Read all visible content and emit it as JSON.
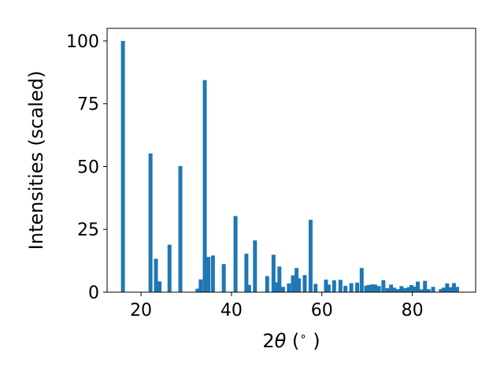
{
  "chart_data": {
    "type": "bar",
    "xlabel": "2θ (°)",
    "xlabel_parts": {
      "prefix": "2",
      "theta": "θ",
      "open": " (",
      "unit": "∘",
      "close": " )"
    },
    "ylabel": "Intensities (scaled)",
    "xlim": [
      12.5,
      94.0
    ],
    "ylim": [
      0,
      105
    ],
    "xticks": [
      20,
      40,
      60,
      80
    ],
    "yticks": [
      0,
      25,
      50,
      75,
      100
    ],
    "bar_color": "#1f77b4",
    "grid": false,
    "x": [
      16.0,
      22.1,
      23.3,
      24.1,
      26.3,
      28.7,
      32.5,
      33.2,
      34.1,
      34.9,
      35.9,
      38.3,
      40.9,
      43.3,
      43.9,
      45.2,
      47.9,
      49.3,
      49.9,
      50.6,
      51.4,
      52.7,
      53.6,
      54.4,
      54.9,
      56.2,
      57.5,
      58.6,
      60.9,
      61.5,
      62.7,
      64.1,
      65.2,
      66.5,
      67.8,
      68.8,
      69.8,
      70.4,
      71.2,
      71.8,
      72.6,
      73.6,
      74.5,
      75.3,
      76.0,
      76.8,
      77.6,
      78.4,
      79.2,
      79.8,
      80.4,
      81.2,
      82.0,
      82.8,
      83.6,
      84.6,
      86.3,
      86.9,
      87.7,
      88.4,
      89.2,
      89.9
    ],
    "values": [
      100,
      55.2,
      13.3,
      4.3,
      18.9,
      50.2,
      1.4,
      5.1,
      84.4,
      14.0,
      14.6,
      11.2,
      30.3,
      15.3,
      2.9,
      20.6,
      6.4,
      14.9,
      3.9,
      10.2,
      2.1,
      3.5,
      6.7,
      9.6,
      5.5,
      6.8,
      28.8,
      3.3,
      5.0,
      3.0,
      4.7,
      4.9,
      2.5,
      3.6,
      3.8,
      9.6,
      2.6,
      2.9,
      3.1,
      3.0,
      2.4,
      4.8,
      1.6,
      3.0,
      1.8,
      1.2,
      2.4,
      1.6,
      2.0,
      2.8,
      2.2,
      4.2,
      1.1,
      4.5,
      1.2,
      2.1,
      1.2,
      1.8,
      3.5,
      2.0,
      3.6,
      2.1
    ]
  }
}
